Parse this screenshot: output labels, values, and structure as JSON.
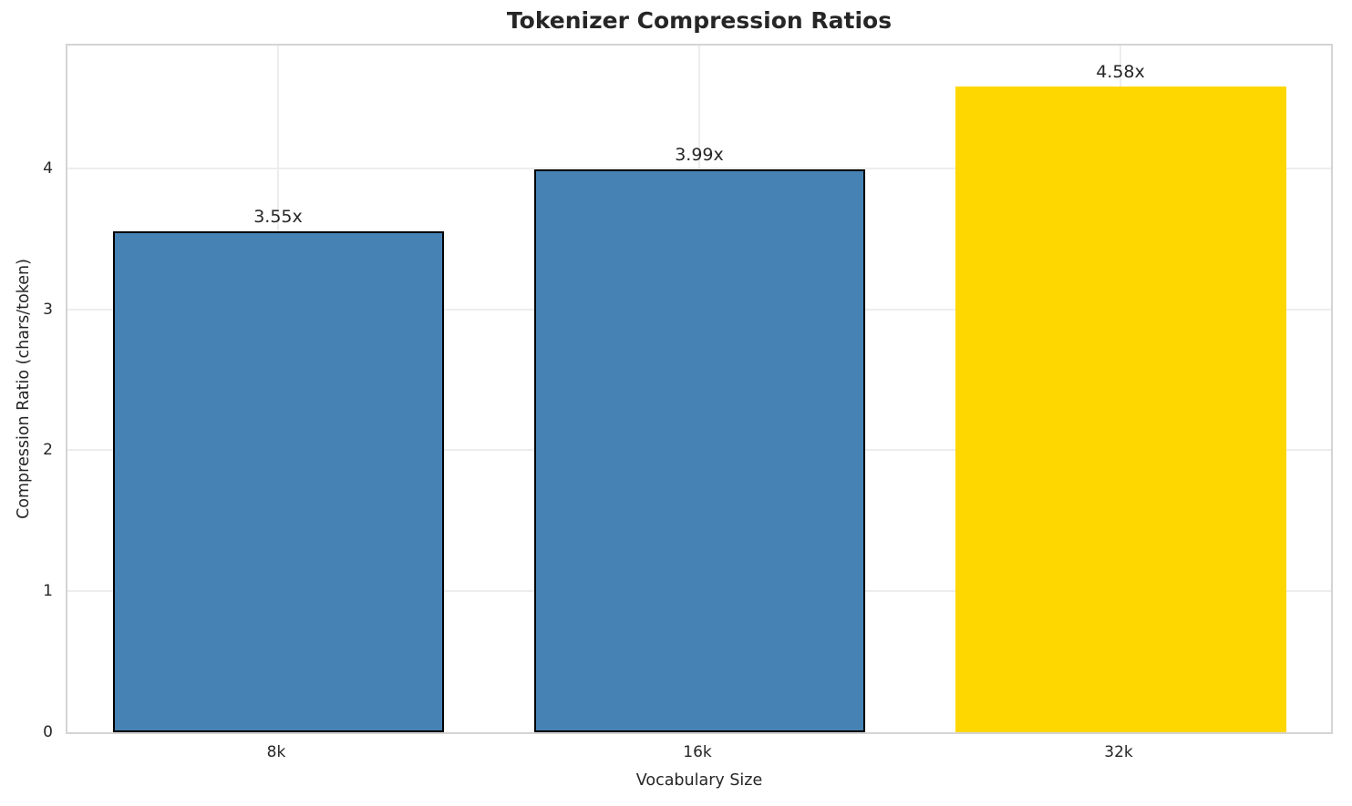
{
  "chart_data": {
    "type": "bar",
    "title": "Tokenizer Compression Ratios",
    "xlabel": "Vocabulary Size",
    "ylabel": "Compression Ratio (chars/token)",
    "categories": [
      "8k",
      "16k",
      "32k"
    ],
    "values": [
      3.55,
      3.99,
      4.58
    ],
    "bar_labels": [
      "3.55x",
      "3.99x",
      "4.58x"
    ],
    "bar_colors": [
      "#4682B4",
      "#4682B4",
      "#FFD700"
    ],
    "bar_edge_colors": [
      "#000000",
      "#000000",
      "none"
    ],
    "yticks": [
      0,
      1,
      2,
      3,
      4
    ],
    "ylim": [
      0,
      4.87
    ],
    "grid": true,
    "legend": false,
    "colors": {
      "highlight_bar": "#FFD700",
      "default_bar": "#4682B4",
      "text": "#262626",
      "gridline": "#ededed",
      "spine": "#d4d4d4",
      "background": "#ffffff"
    }
  }
}
